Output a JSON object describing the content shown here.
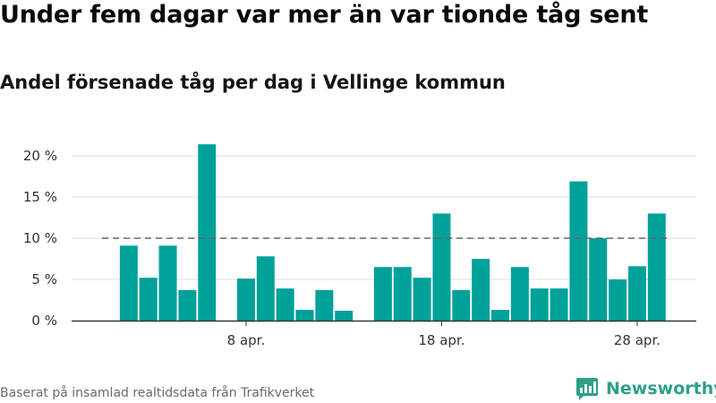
{
  "title": "Under fem dagar var mer än var tionde tåg sent",
  "subtitle": "Andel försenade tåg per dag i Vellinge kommun",
  "source": "Baserat på insamlad realtidsdata från Trafikverket",
  "brand": {
    "name": "Newsworthy",
    "icon": "newsworthy-logo-icon"
  },
  "colors": {
    "bar": "#00a19a",
    "reference_line": "#666666",
    "grid": "#dddddd",
    "axis": "#333333",
    "brand": "#2f9f8b"
  },
  "chart_data": {
    "type": "bar",
    "title": "Under fem dagar var mer än var tionde tåg sent",
    "subtitle": "Andel försenade tåg per dag i Vellinge kommun",
    "xlabel": "",
    "ylabel": "",
    "x": [
      "2021-04-01",
      "2021-04-02",
      "2021-04-03",
      "2021-04-04",
      "2021-04-05",
      "2021-04-06",
      "2021-04-07",
      "2021-04-08",
      "2021-04-09",
      "2021-04-10",
      "2021-04-11",
      "2021-04-12",
      "2021-04-13",
      "2021-04-14",
      "2021-04-15",
      "2021-04-16",
      "2021-04-17",
      "2021-04-18",
      "2021-04-19",
      "2021-04-20",
      "2021-04-21",
      "2021-04-22",
      "2021-04-23",
      "2021-04-24",
      "2021-04-25",
      "2021-04-26",
      "2021-04-27",
      "2021-04-28",
      "2021-04-29",
      "2021-04-30",
      "2021-05-01"
    ],
    "values": [
      null,
      9.1,
      5.2,
      9.1,
      3.7,
      21.4,
      null,
      5.1,
      7.8,
      3.9,
      1.3,
      3.7,
      1.2,
      null,
      6.5,
      6.5,
      5.2,
      13.0,
      3.7,
      7.5,
      1.3,
      6.5,
      3.9,
      3.9,
      16.9,
      10.0,
      5.0,
      6.6,
      13.0,
      null,
      null
    ],
    "reference_line": 10,
    "ylim": [
      0,
      22
    ],
    "yticks": [
      0,
      5,
      10,
      15,
      20
    ],
    "ytick_labels": [
      "0 %",
      "5 %",
      "10 %",
      "15 %",
      "20 %"
    ],
    "xtick_dates": [
      "2021-04-08",
      "2021-04-18",
      "2021-04-28"
    ],
    "xtick_labels": [
      "8 apr.",
      "18 apr.",
      "28 apr."
    ],
    "grid": true
  }
}
